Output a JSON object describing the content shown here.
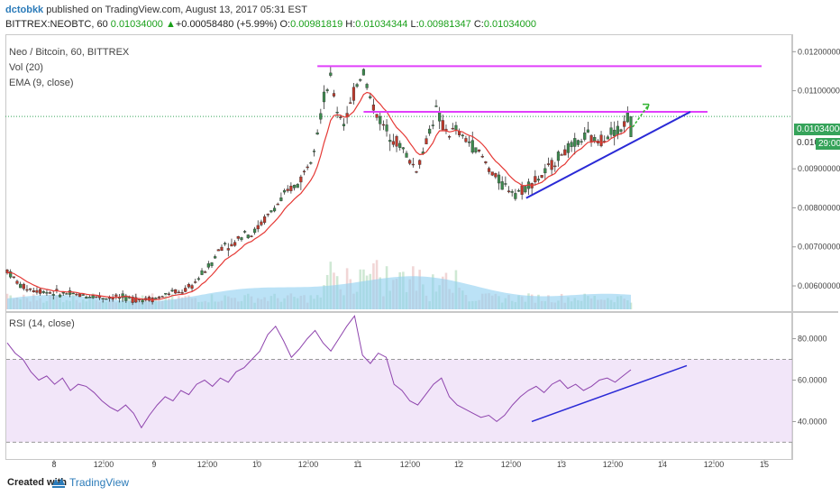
{
  "header": {
    "author": "dctobkk",
    "published_text": "published on TradingView.com, August 13, 2017 05:31 EST",
    "symbol_line": "BITTREX:NEOBTC, 60",
    "last": "0.01034000",
    "change_arrow": "▲",
    "change": "+0.00058480 (+5.99%)",
    "o_label": "O:",
    "o_value": "0.00981819",
    "h_label": "H:",
    "h_value": "0.01034344",
    "l_label": "L:",
    "l_value": "0.00981347",
    "c_label": "C:",
    "c_value": "0.01034000"
  },
  "legend": {
    "title": "Neo / Bitcoin, 60, BITTREX",
    "vol": "Vol (20)",
    "ema": "EMA (9, close)",
    "rsi": "RSI (14, close)"
  },
  "price_tags": {
    "last": "0.01034000",
    "last_partial": "0.010",
    "countdown": "29:00"
  },
  "footer": {
    "created_with": "Created with",
    "brand": "TradingView"
  },
  "colors": {
    "bull": "#3c8a4e",
    "bear": "#c0392b",
    "ema": "#e53935",
    "rsi": "#8e44ad",
    "rsi_band": "#ead6f5",
    "resistance": "#e040fb",
    "trendline": "#2a2ad6",
    "arrow": "#32b432",
    "volume_ma": "#8ecff0",
    "last_price_tag": "#36a35a"
  },
  "chart_data": [
    {
      "type": "candlestick",
      "title": "Neo / Bitcoin, 60, BITTREX",
      "x_ticks": [
        "8",
        "12:00",
        "9",
        "12:00",
        "10",
        "12:00",
        "11",
        "12:00",
        "12",
        "12:00",
        "13",
        "12:00",
        "14",
        "12:00",
        "15"
      ],
      "y_ticks": [
        "0.01200000",
        "0.01100000",
        "0.00900000",
        "0.00800000",
        "0.00700000",
        "0.00600000"
      ],
      "ylim": [
        0.0054,
        0.0124
      ],
      "close_profile": [
        0.0064,
        0.0062,
        0.006,
        0.00595,
        0.0059,
        0.00588,
        0.00585,
        0.00583,
        0.0058,
        0.0058,
        0.00578,
        0.00576,
        0.00575,
        0.00574,
        0.00572,
        0.0057,
        0.00572,
        0.0057,
        0.00568,
        0.00567,
        0.00566,
        0.00566,
        0.00568,
        0.0057,
        0.00578,
        0.00585,
        0.00582,
        0.0059,
        0.006,
        0.0062,
        0.0064,
        0.0066,
        0.0069,
        0.0071,
        0.007,
        0.0072,
        0.0074,
        0.0073,
        0.0075,
        0.0077,
        0.0079,
        0.0081,
        0.0083,
        0.0085,
        0.0086,
        0.0089,
        0.0093,
        0.01,
        0.0108,
        0.0113,
        0.0105,
        0.0102,
        0.0106,
        0.0112,
        0.0115,
        0.0108,
        0.0104,
        0.0101,
        0.0099,
        0.0097,
        0.0095,
        0.0092,
        0.009,
        0.0094,
        0.01,
        0.0105,
        0.0101,
        0.0099,
        0.01,
        0.0098,
        0.0097,
        0.0095,
        0.0093,
        0.009,
        0.0088,
        0.0086,
        0.0085,
        0.0084,
        0.00845,
        0.0086,
        0.0087,
        0.0088,
        0.009,
        0.0092,
        0.0094,
        0.0095,
        0.0096,
        0.00975,
        0.00985,
        0.0097,
        0.00975,
        0.0099,
        0.01,
        0.01,
        0.01034
      ],
      "ema_period": 9,
      "resistance_lines": [
        {
          "price": 0.01163,
          "from_index": 47,
          "to_extend": 1.65
        },
        {
          "price": 0.01046,
          "from_index": 54,
          "to_extend": 1.35
        }
      ],
      "rising_trendline": {
        "from_index": 80,
        "from_price": 0.00825,
        "to_extend": 1.35,
        "to_price": 0.01046
      },
      "projection_arrow": {
        "from_price": 0.0103,
        "to_price": 0.0107
      },
      "volume_series": "relative volume bars overlaid on lower price region with 20-period MA band"
    },
    {
      "type": "line",
      "title": "RSI (14, close)",
      "y_ticks": [
        "80.0000",
        "60.0000",
        "40.0000"
      ],
      "ylim": [
        28,
        92
      ],
      "band": [
        30,
        70
      ],
      "values": [
        78,
        73,
        70,
        64,
        60,
        62,
        58,
        61,
        55,
        58,
        57,
        54,
        50,
        47,
        45,
        48,
        44,
        37,
        43,
        48,
        52,
        50,
        55,
        53,
        58,
        60,
        57,
        61,
        59,
        64,
        66,
        70,
        74,
        82,
        86,
        79,
        71,
        75,
        80,
        84,
        78,
        74,
        80,
        86,
        91,
        72,
        68,
        73,
        71,
        58,
        55,
        50,
        48,
        53,
        58,
        61,
        52,
        48,
        46,
        44,
        42,
        43,
        40,
        43,
        48,
        52,
        55,
        57,
        54,
        58,
        60,
        56,
        58,
        55,
        57,
        60,
        61,
        59,
        62,
        65
      ],
      "trendline": {
        "from_value": 40,
        "to_value": 67
      }
    }
  ]
}
